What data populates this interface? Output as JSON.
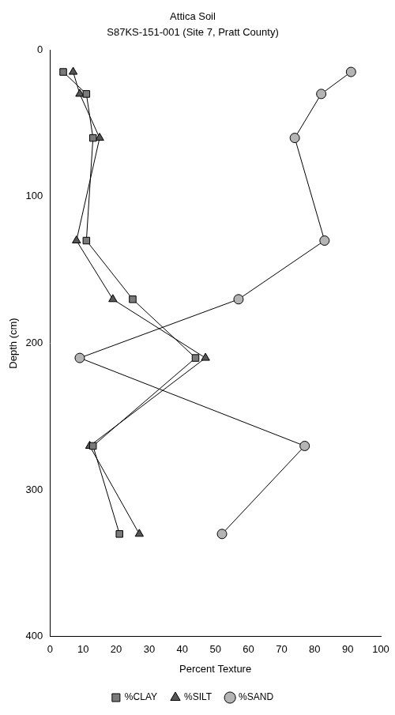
{
  "chart_data": {
    "type": "scatter",
    "title": "Attica Soil",
    "subtitle": "S87KS-151-001 (Site 7, Pratt County)",
    "x_label": "Percent Texture",
    "y_label": "Depth (cm)",
    "xlim": [
      0,
      100
    ],
    "xticks": [
      0,
      10,
      20,
      30,
      40,
      50,
      60,
      70,
      80,
      90,
      100
    ],
    "ylim": [
      400,
      0
    ],
    "yticks": [
      0,
      100,
      200,
      300,
      400
    ],
    "grid": false,
    "legend": "bottom",
    "series": [
      {
        "name": "%CLAY",
        "color": "#7a7a7a",
        "marker": "square",
        "line_style": "solid",
        "x": [
          4,
          11,
          13,
          11,
          25,
          44,
          13,
          21
        ],
        "y": [
          15,
          30,
          60,
          130,
          170,
          210,
          270,
          330
        ]
      },
      {
        "name": "%SILT",
        "color": "#555555",
        "marker": "triangle",
        "line_style": "solid",
        "x": [
          7,
          9,
          15,
          8,
          19,
          47,
          12,
          27
        ],
        "y": [
          15,
          30,
          60,
          130,
          170,
          210,
          270,
          330
        ]
      },
      {
        "name": "%SAND",
        "color": "#b4b4b4",
        "marker": "circle",
        "line_style": "solid",
        "x": [
          91,
          82,
          74,
          83,
          57,
          9,
          77,
          52
        ],
        "y": [
          15,
          30,
          60,
          130,
          170,
          210,
          270,
          330
        ]
      }
    ]
  }
}
